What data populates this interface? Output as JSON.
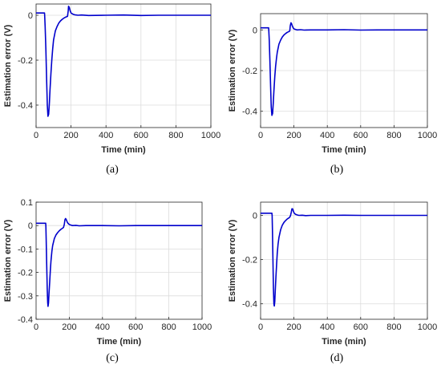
{
  "colors": {
    "series": "#0000cc",
    "grid": "#dcdcdc",
    "axis": "#262626"
  },
  "chart_data": [
    {
      "type": "line",
      "caption": "(a)",
      "xlabel": "Time (min)",
      "ylabel": "Estimation error (V)",
      "xlim": [
        0,
        1000
      ],
      "ylim": [
        -0.5,
        0.05
      ],
      "xticks": [
        0,
        200,
        400,
        600,
        800,
        1000
      ],
      "yticks": [
        0,
        -0.2,
        -0.4
      ],
      "ytick_labels": [
        "0",
        "-0.2",
        "-0.4"
      ],
      "grid": true,
      "series": [
        {
          "x": [
            0,
            48,
            49,
            52,
            56,
            60,
            64,
            68,
            72,
            76,
            80,
            85,
            90,
            95,
            100,
            110,
            120,
            130,
            140,
            150,
            160,
            170,
            180,
            184,
            186,
            190,
            195,
            200,
            210,
            220,
            240,
            260,
            300,
            400,
            500,
            600,
            700,
            800,
            900,
            1000
          ],
          "y": [
            0.01,
            0.01,
            0.0,
            -0.05,
            -0.15,
            -0.28,
            -0.4,
            -0.45,
            -0.44,
            -0.39,
            -0.33,
            -0.26,
            -0.2,
            -0.15,
            -0.11,
            -0.07,
            -0.05,
            -0.035,
            -0.025,
            -0.018,
            -0.012,
            -0.008,
            -0.005,
            0.02,
            0.04,
            0.035,
            0.02,
            0.01,
            0.005,
            0.002,
            0.0,
            0.001,
            -0.001,
            0.0,
            0.001,
            -0.001,
            0.0,
            0.0,
            0.0,
            0.0
          ]
        }
      ]
    },
    {
      "type": "line",
      "caption": "(b)",
      "xlabel": "Time (min)",
      "ylabel": "Estimation error (V)",
      "xlim": [
        0,
        1000
      ],
      "ylim": [
        -0.48,
        0.08
      ],
      "xticks": [
        0,
        200,
        400,
        600,
        800,
        1000
      ],
      "yticks": [
        0,
        -0.2,
        -0.4
      ],
      "ytick_labels": [
        "0",
        "-0.2",
        "-0.4"
      ],
      "grid": true,
      "series": [
        {
          "x": [
            0,
            48,
            49,
            52,
            56,
            60,
            64,
            68,
            72,
            76,
            80,
            85,
            90,
            95,
            100,
            110,
            120,
            130,
            140,
            150,
            160,
            170,
            175,
            178,
            182,
            186,
            190,
            195,
            200,
            210,
            220,
            240,
            260,
            300,
            400,
            500,
            600,
            700,
            800,
            900,
            1000
          ],
          "y": [
            0.01,
            0.01,
            0.0,
            -0.05,
            -0.15,
            -0.28,
            -0.38,
            -0.42,
            -0.41,
            -0.36,
            -0.3,
            -0.23,
            -0.18,
            -0.14,
            -0.11,
            -0.07,
            -0.05,
            -0.035,
            -0.025,
            -0.018,
            -0.012,
            -0.008,
            -0.005,
            0.02,
            0.035,
            0.03,
            0.02,
            0.01,
            0.005,
            0.002,
            0.0,
            0.001,
            -0.001,
            0.0,
            0.0,
            0.001,
            -0.001,
            0.0,
            0.0,
            0.0,
            0.0
          ]
        }
      ]
    },
    {
      "type": "line",
      "caption": "(c)",
      "xlabel": "Time (min)",
      "ylabel": "Estimation error (V)",
      "xlim": [
        0,
        1000
      ],
      "ylim": [
        -0.4,
        0.1
      ],
      "xticks": [
        0,
        200,
        400,
        600,
        800,
        1000
      ],
      "yticks": [
        0.1,
        0,
        -0.1,
        -0.2,
        -0.3,
        -0.4
      ],
      "ytick_labels": [
        "0.1",
        "0",
        "-0.1",
        "-0.2",
        "-0.3",
        "-0.4"
      ],
      "grid": true,
      "series": [
        {
          "x": [
            0,
            58,
            59,
            61,
            64,
            67,
            70,
            72,
            75,
            78,
            82,
            86,
            90,
            95,
            100,
            110,
            120,
            130,
            140,
            150,
            160,
            165,
            170,
            174,
            178,
            182,
            186,
            190,
            196,
            202,
            210,
            220,
            240,
            260,
            300,
            400,
            500,
            600,
            700,
            800,
            900,
            1000
          ],
          "y": [
            0.01,
            0.01,
            0.0,
            -0.06,
            -0.16,
            -0.27,
            -0.33,
            -0.345,
            -0.33,
            -0.29,
            -0.24,
            -0.19,
            -0.15,
            -0.11,
            -0.085,
            -0.055,
            -0.04,
            -0.03,
            -0.022,
            -0.016,
            -0.011,
            -0.008,
            0.005,
            0.025,
            0.03,
            0.025,
            0.018,
            0.012,
            0.007,
            0.004,
            0.002,
            0.0,
            0.001,
            -0.001,
            0.0,
            0.0,
            -0.001,
            0.0,
            0.0,
            0.0,
            0.0,
            0.0
          ]
        }
      ]
    },
    {
      "type": "line",
      "caption": "(d)",
      "xlabel": "Time (min)",
      "ylabel": "Estimation error (V)",
      "xlim": [
        0,
        1000
      ],
      "ylim": [
        -0.47,
        0.06
      ],
      "xticks": [
        0,
        200,
        400,
        600,
        800,
        1000
      ],
      "yticks": [
        0,
        -0.2,
        -0.4
      ],
      "ytick_labels": [
        "0",
        "-0.2",
        "-0.4"
      ],
      "grid": true,
      "series": [
        {
          "x": [
            0,
            68,
            69,
            71,
            74,
            77,
            80,
            82,
            85,
            88,
            92,
            96,
            100,
            105,
            110,
            120,
            130,
            140,
            150,
            160,
            170,
            175,
            180,
            184,
            188,
            192,
            196,
            200,
            206,
            212,
            220,
            230,
            250,
            270,
            300,
            400,
            500,
            600,
            700,
            800,
            900,
            1000
          ],
          "y": [
            0.01,
            0.01,
            0.0,
            -0.07,
            -0.2,
            -0.33,
            -0.4,
            -0.41,
            -0.39,
            -0.34,
            -0.28,
            -0.22,
            -0.17,
            -0.13,
            -0.1,
            -0.065,
            -0.045,
            -0.032,
            -0.023,
            -0.016,
            -0.011,
            -0.008,
            0.0,
            0.015,
            0.03,
            0.03,
            0.02,
            0.012,
            0.007,
            0.004,
            0.002,
            0.0,
            0.001,
            -0.001,
            0.0,
            0.0,
            0.001,
            0.0,
            0.0,
            0.0,
            0.0,
            0.0
          ]
        }
      ]
    }
  ]
}
